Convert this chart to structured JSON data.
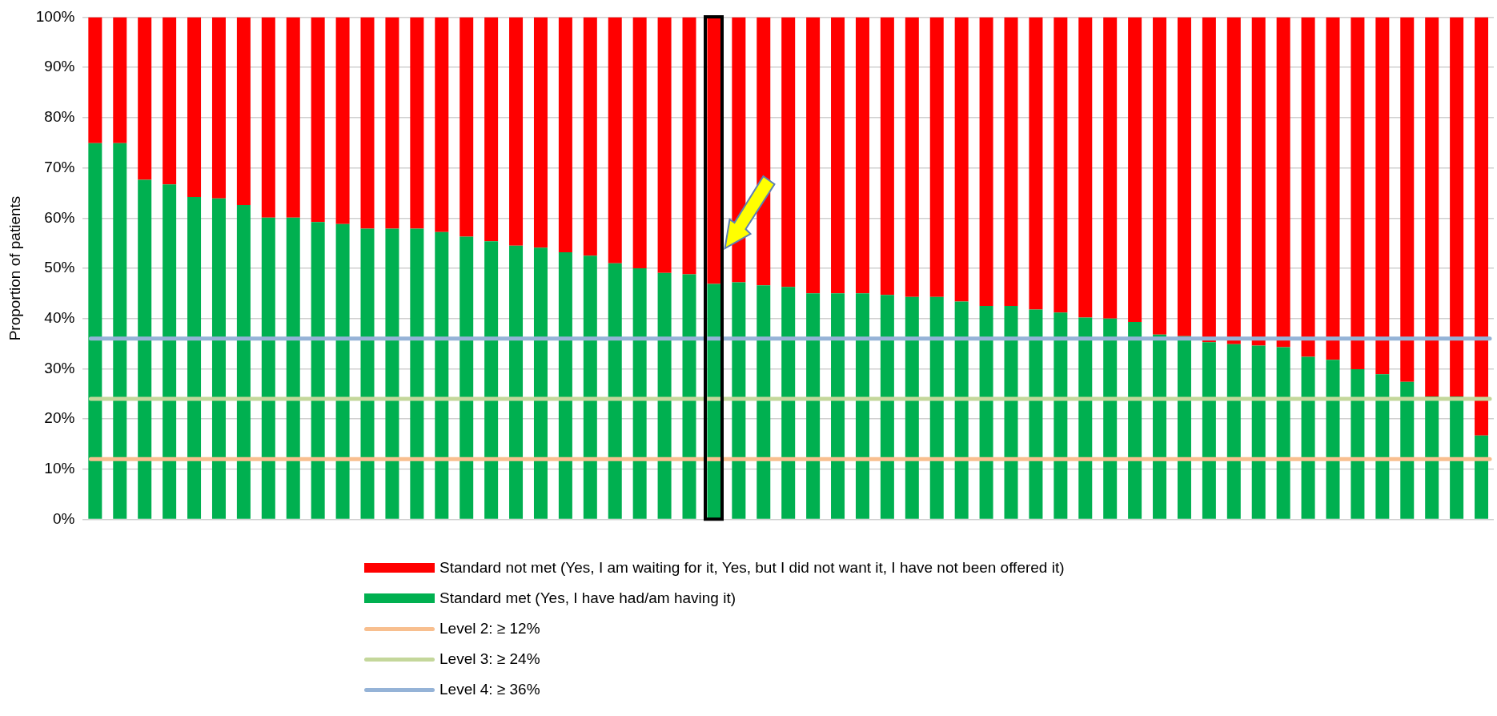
{
  "chart_data": {
    "type": "bar",
    "stacked": true,
    "ylabel": "Proportion of patients",
    "categories": [
      null,
      null,
      null,
      null,
      null,
      null,
      null,
      null,
      null,
      null,
      null,
      null,
      null,
      null,
      null,
      null,
      null,
      null,
      null,
      null,
      null,
      null,
      null,
      null,
      null,
      null,
      null,
      null,
      null,
      null,
      null,
      null,
      null,
      null,
      null,
      null,
      null,
      null,
      null,
      null,
      null,
      null,
      null,
      null,
      null,
      null,
      null,
      null,
      null,
      null,
      null,
      null,
      null,
      null,
      null,
      null,
      null
    ],
    "series": [
      {
        "name": "Standard met (Yes, I have had/am having it)",
        "color": "#00b050",
        "values": [
          74.9,
          74.9,
          67.6,
          66.7,
          64.2,
          63.9,
          62.6,
          60.1,
          60.1,
          59.2,
          58.8,
          57.9,
          57.9,
          57.9,
          57.2,
          56.3,
          55.4,
          54.5,
          54.1,
          53.2,
          52.5,
          51.0,
          50.0,
          49.1,
          48.8,
          46.9,
          47.2,
          46.6,
          46.3,
          45.0,
          45.0,
          45.0,
          44.7,
          44.3,
          44.3,
          43.4,
          42.5,
          42.5,
          41.8,
          41.2,
          40.2,
          40.0,
          39.3,
          36.8,
          36.5,
          35.3,
          34.9,
          34.6,
          34.3,
          32.4,
          31.8,
          29.9,
          28.9,
          27.4,
          24.5,
          24.5,
          16.7
        ]
      },
      {
        "name": "Standard not met (Yes, I am waiting for it, Yes, but I did not want it, I have not been offered it)",
        "color": "#ff0000",
        "values": [
          25.1,
          25.1,
          32.4,
          33.3,
          35.8,
          36.1,
          37.4,
          39.9,
          39.9,
          40.8,
          41.2,
          42.1,
          42.1,
          42.1,
          42.8,
          43.7,
          44.6,
          45.5,
          45.9,
          46.8,
          47.5,
          49.0,
          50.0,
          50.9,
          51.2,
          53.1,
          52.8,
          53.4,
          53.7,
          55.0,
          55.0,
          55.0,
          55.3,
          55.7,
          55.7,
          56.6,
          57.5,
          57.5,
          58.2,
          58.8,
          59.8,
          60.0,
          60.7,
          63.2,
          63.5,
          64.7,
          65.1,
          65.4,
          65.7,
          67.6,
          68.2,
          70.1,
          71.1,
          72.6,
          75.5,
          75.5,
          83.3
        ]
      }
    ],
    "ylim": [
      0,
      100
    ],
    "yticks": [
      {
        "value": 0,
        "label": "0%"
      },
      {
        "value": 10,
        "label": "10%"
      },
      {
        "value": 20,
        "label": "20%"
      },
      {
        "value": 30,
        "label": "30%"
      },
      {
        "value": 40,
        "label": "40%"
      },
      {
        "value": 50,
        "label": "50%"
      },
      {
        "value": 60,
        "label": "60%"
      },
      {
        "value": 70,
        "label": "70%"
      },
      {
        "value": 80,
        "label": "80%"
      },
      {
        "value": 90,
        "label": "90%"
      },
      {
        "value": 100,
        "label": "100%"
      }
    ],
    "ref_lines": [
      {
        "axis": "y",
        "value": 12,
        "label": "Level 2: ≥ 12%",
        "color": "#f8bf8f"
      },
      {
        "axis": "y",
        "value": 24,
        "label": "Level 3: ≥ 24%",
        "color": "#c4d79b"
      },
      {
        "axis": "y",
        "value": 36,
        "label": "Level 4: ≥ 36%",
        "color": "#95b3d7"
      }
    ],
    "grid": "y",
    "legend": "bottom"
  }
}
